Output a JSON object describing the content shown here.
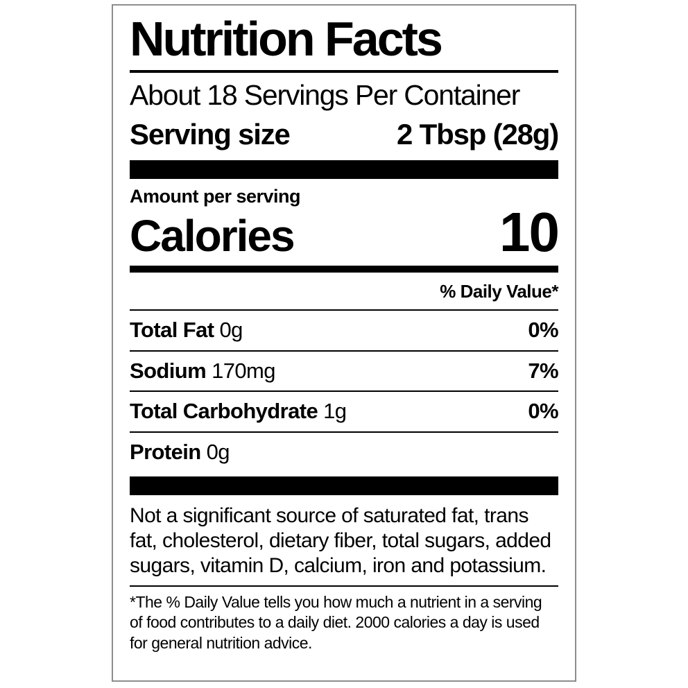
{
  "label": {
    "title": "Nutrition Facts",
    "servings_per_container": "About 18 Servings Per Container",
    "serving_size_label": "Serving size",
    "serving_size_value": "2 Tbsp (28g)",
    "amount_per_serving": "Amount per serving",
    "calories_label": "Calories",
    "calories_value": "10",
    "daily_value_header": "% Daily Value*",
    "nutrients": [
      {
        "name": "Total Fat",
        "amount": "0g",
        "dv": "0%"
      },
      {
        "name": "Sodium",
        "amount": "170mg",
        "dv": "7%"
      },
      {
        "name": "Total Carbohydrate",
        "amount": "1g",
        "dv": "0%"
      },
      {
        "name": "Protein",
        "amount": "0g",
        "dv": ""
      }
    ],
    "not_significant_note": "Not a significant source of saturated fat, trans fat, cholesterol, dietary fiber, total sugars, added sugars, vitamin D, calcium, iron and potassium.",
    "footnote": "*The % Daily Value tells you how much a nutrient in a serving of food contributes to a daily diet. 2000 calories a day is used for general nutrition advice.",
    "colors": {
      "text": "#000000",
      "bar": "#000000",
      "panel_border": "#8d8d8d",
      "background": "#ffffff"
    }
  }
}
